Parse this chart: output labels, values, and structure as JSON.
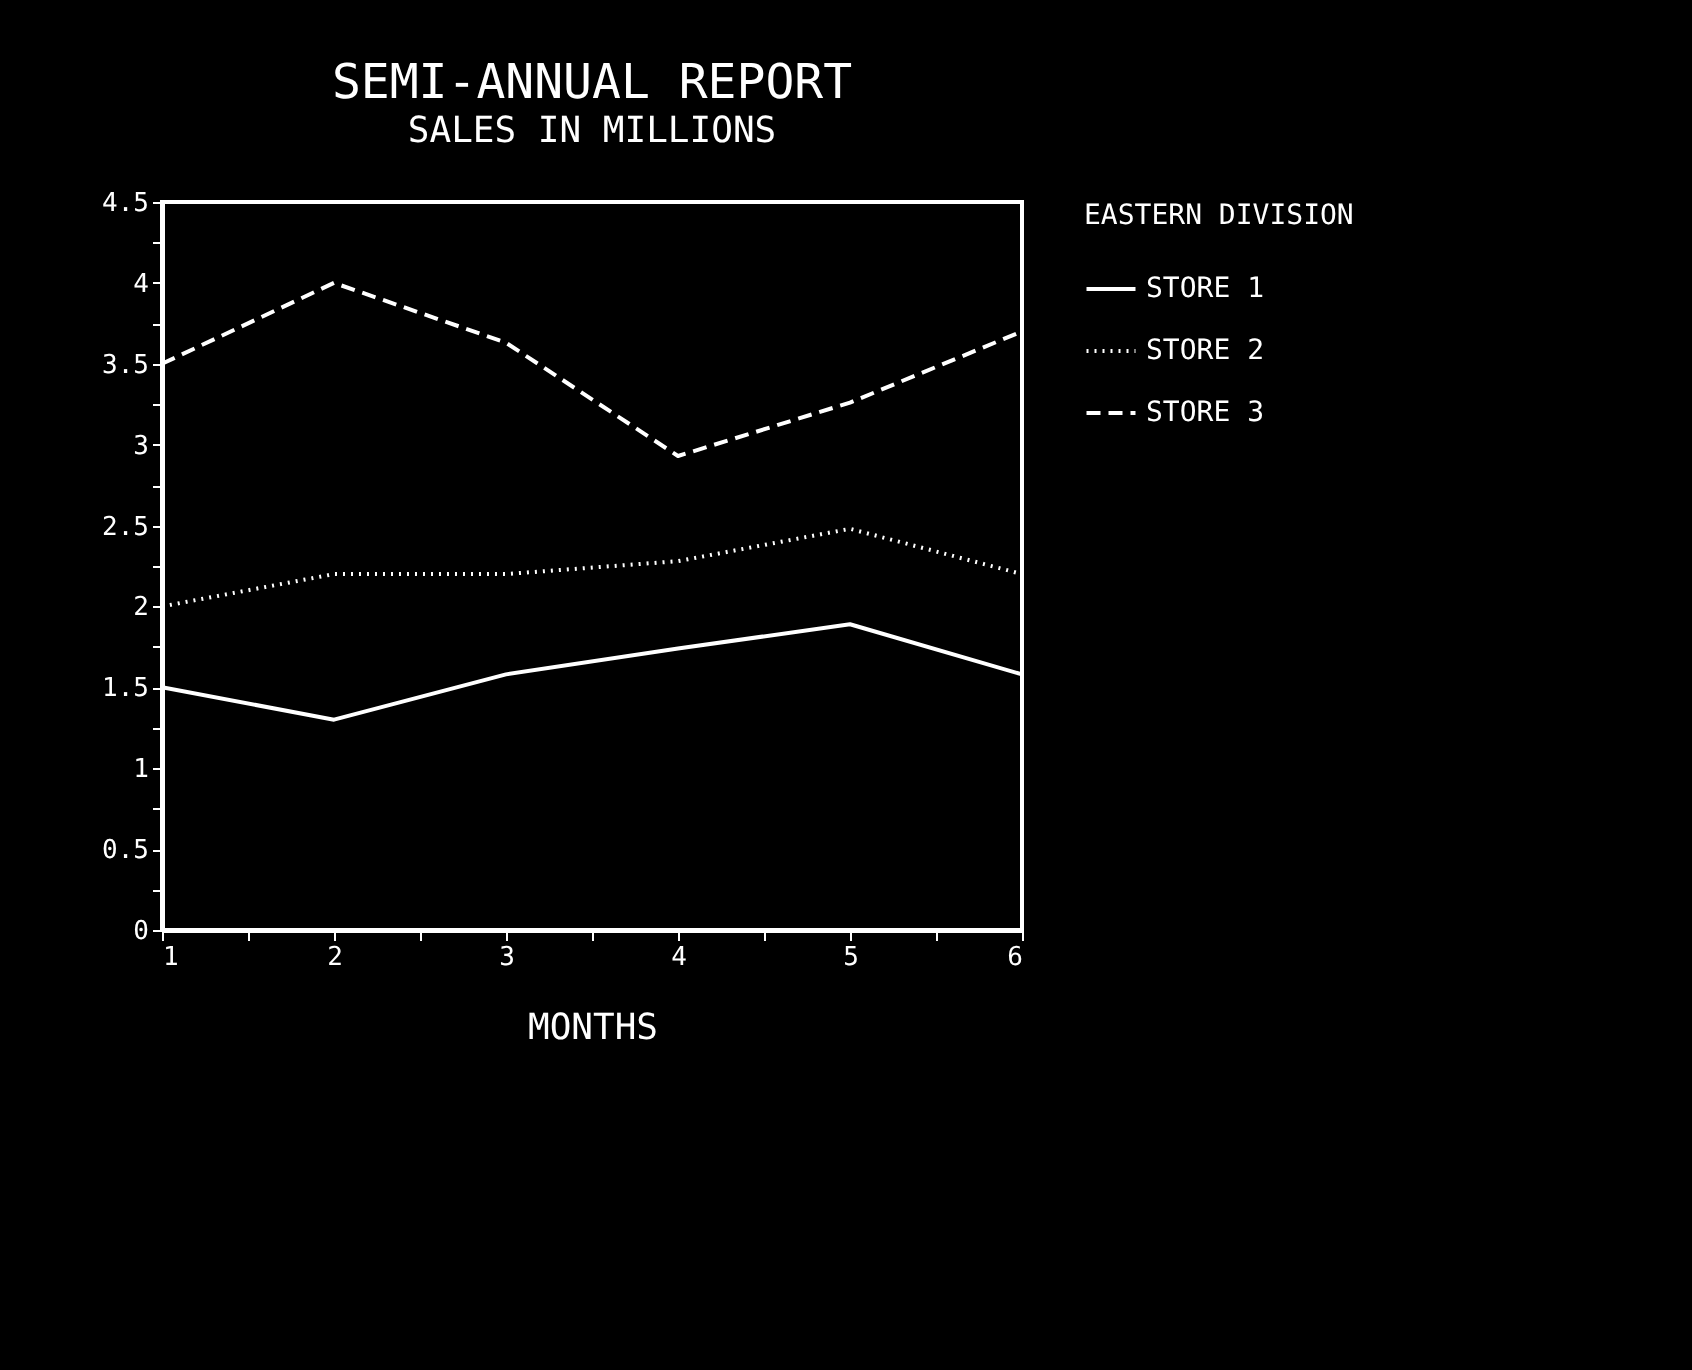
{
  "chart_data": {
    "type": "line",
    "title": "SEMI-ANNUAL REPORT",
    "subtitle": "SALES IN MILLIONS",
    "xlabel": "MONTHS",
    "legend_title": "EASTERN DIVISION",
    "legend": "top right",
    "grid": false,
    "x": [
      1,
      2,
      3,
      4,
      5,
      6
    ],
    "xlim": [
      1,
      6
    ],
    "xticks": [
      1,
      {
        "value": 1.5,
        "label": null
      },
      2,
      {
        "value": 2.5,
        "label": null
      },
      3,
      {
        "value": 3.5,
        "label": null
      },
      4,
      {
        "value": 4.5,
        "label": null
      },
      5,
      {
        "value": 5.5,
        "label": null
      },
      6
    ],
    "ylim": [
      0,
      4.5
    ],
    "yticks": [
      0,
      {
        "value": 0.25,
        "label": null
      },
      0.5,
      {
        "value": 0.75,
        "label": null
      },
      1,
      {
        "value": 1.25,
        "label": null
      },
      1.5,
      {
        "value": 1.75,
        "label": null
      },
      2,
      {
        "value": 2.25,
        "label": null
      },
      2.5,
      {
        "value": 2.75,
        "label": null
      },
      3,
      {
        "value": 3.25,
        "label": null
      },
      3.5,
      {
        "value": 3.75,
        "label": null
      },
      4,
      {
        "value": 4.25,
        "label": null
      },
      4.5
    ],
    "series": [
      {
        "name": "STORE 1",
        "color": "#ffffff",
        "line_style": "solid",
        "values": [
          1.5,
          1.3,
          1.58,
          1.74,
          1.89,
          1.58
        ]
      },
      {
        "name": "STORE 2",
        "color": "#ffffff",
        "line_style": "dotted",
        "values": [
          2.0,
          2.2,
          2.2,
          2.28,
          2.48,
          2.2
        ]
      },
      {
        "name": "STORE 3",
        "color": "#ffffff",
        "line_style": "dashed",
        "values": [
          3.5,
          4.0,
          3.63,
          2.93,
          3.26,
          3.7
        ]
      }
    ]
  }
}
